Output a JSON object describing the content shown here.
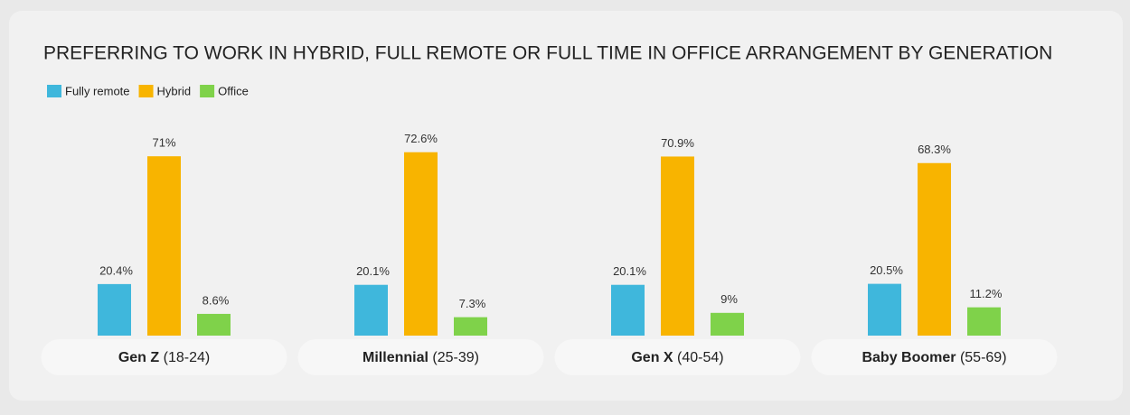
{
  "chart_data": {
    "type": "bar",
    "title": "PREFERRING TO WORK IN HYBRID, FULL REMOTE OR FULL TIME IN OFFICE ARRANGEMENT BY GENERATION",
    "categories": [
      "Gen Z",
      "Millennial",
      "Gen X",
      "Baby Boomer"
    ],
    "category_ranges": [
      "(18-24)",
      "(25-39)",
      "(40-54)",
      "(55-69)"
    ],
    "series": [
      {
        "name": "Fully remote",
        "color": "#3fb7dc",
        "values": [
          20.4,
          20.1,
          20.1,
          20.5
        ],
        "value_labels": [
          "20.4%",
          "20.1%",
          "20.1%",
          "20.5%"
        ]
      },
      {
        "name": "Hybrid",
        "color": "#f8b400",
        "values": [
          71,
          72.6,
          70.9,
          68.3
        ],
        "value_labels": [
          "71%",
          "72.6%",
          "70.9%",
          "68.3%"
        ]
      },
      {
        "name": "Office",
        "color": "#7fd24a",
        "values": [
          8.6,
          7.3,
          9,
          11.2
        ],
        "value_labels": [
          "8.6%",
          "7.3%",
          "9%",
          "11.2%"
        ]
      }
    ],
    "legend": "top-left"
  }
}
